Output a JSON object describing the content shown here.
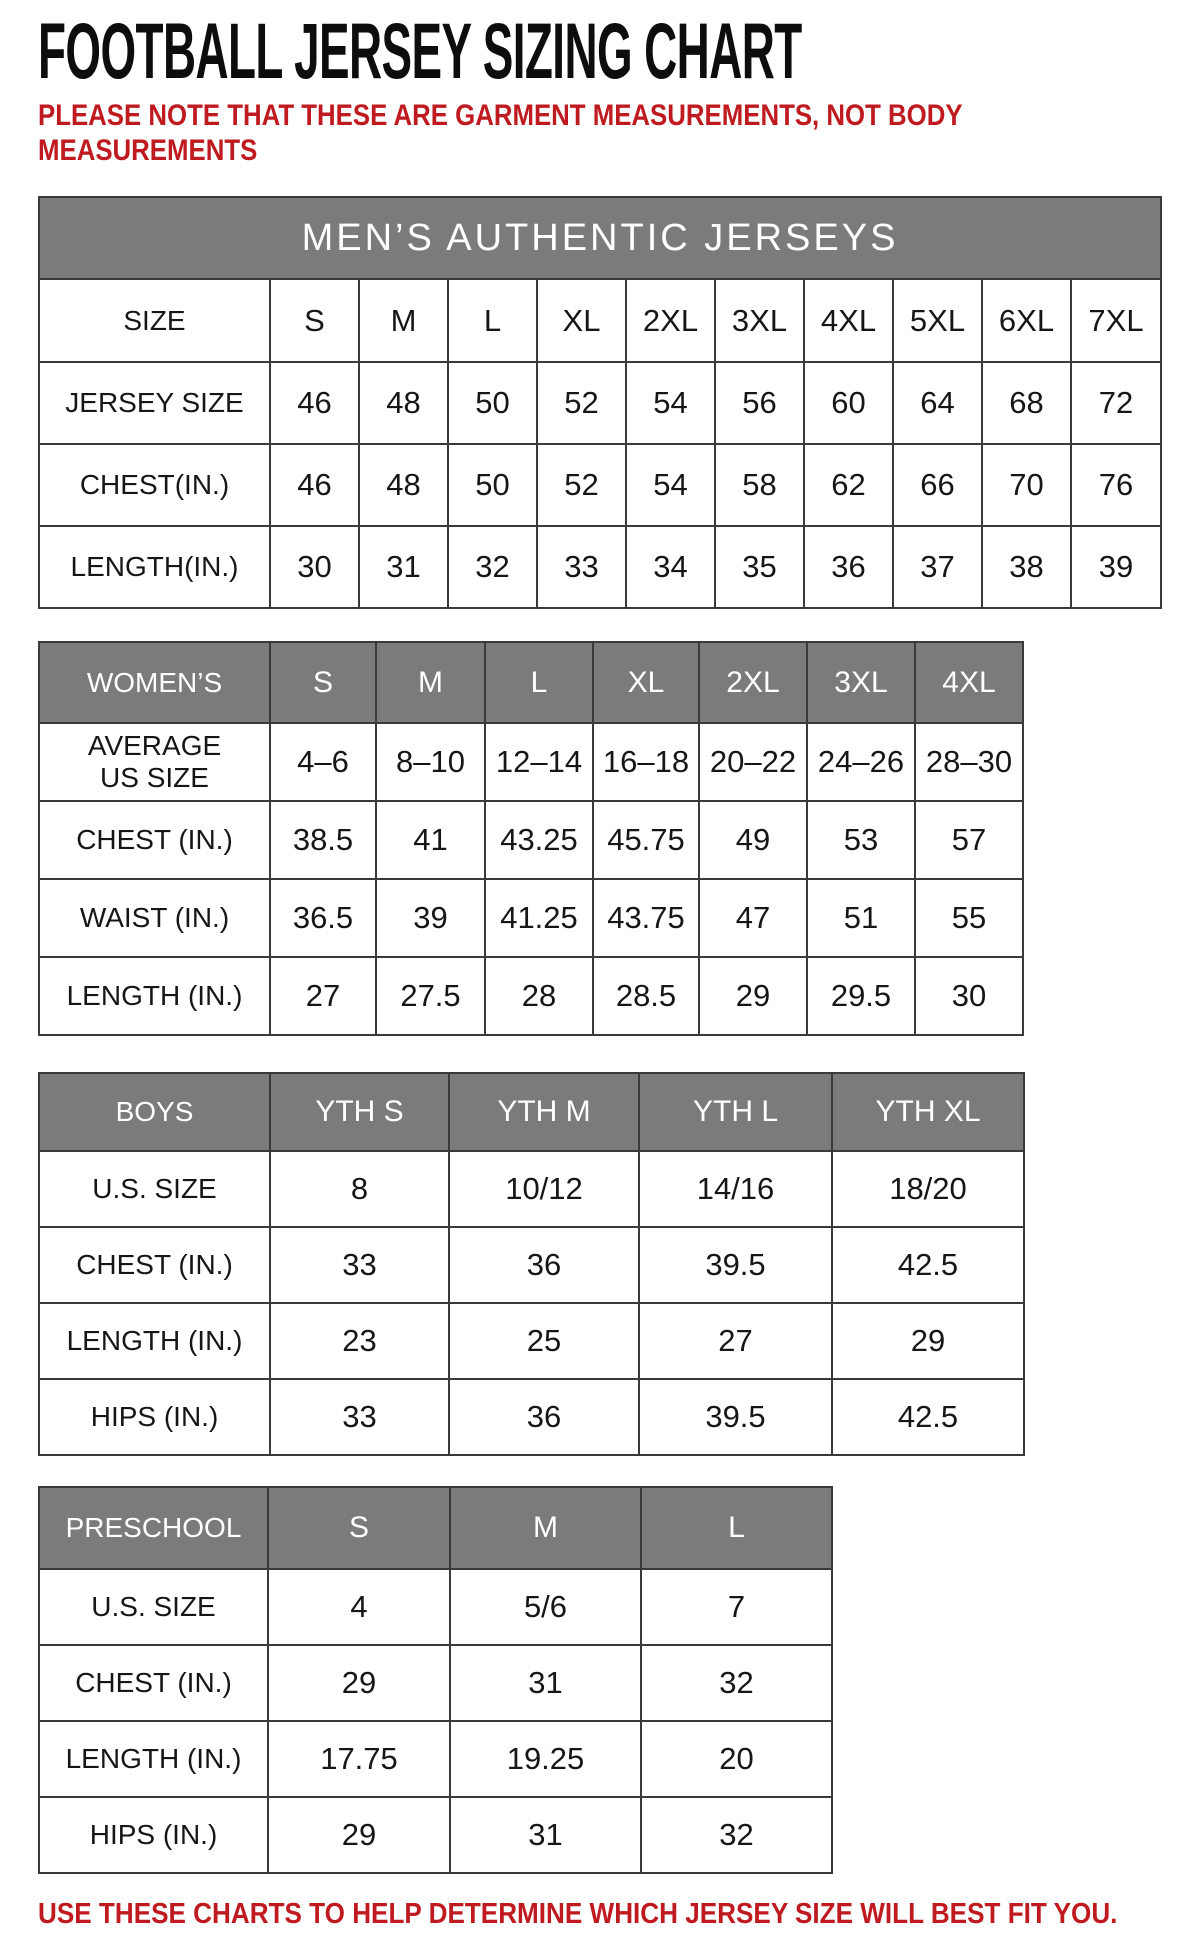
{
  "page": {
    "title": "FOOTBALL JERSEY SIZING CHART",
    "note": "PLEASE NOTE THAT THESE ARE GARMENT MEASUREMENTS, NOT BODY\nMEASUREMENTS",
    "footer": "USE THESE CHARTS TO HELP DETERMINE WHICH JERSEY SIZE WILL BEST FIT YOU.",
    "colors": {
      "accent_red": "#BF1A20",
      "header_gray": "#7B7B7B",
      "text_ink": "#161616"
    }
  },
  "tables": [
    {
      "name": "mens",
      "banner": "MEN’S AUTHENTIC JERSEYS",
      "head_label": "SIZE",
      "head_gray": false,
      "head_cols": [
        "S",
        "M",
        "L",
        "XL",
        "2XL",
        "3XL",
        "4XL",
        "5XL",
        "6XL",
        "7XL"
      ],
      "rows": [
        {
          "label": "JERSEY SIZE",
          "values": [
            "46",
            "48",
            "50",
            "52",
            "54",
            "56",
            "60",
            "64",
            "68",
            "72"
          ]
        },
        {
          "label": "CHEST(IN.)",
          "values": [
            "46",
            "48",
            "50",
            "52",
            "54",
            "58",
            "62",
            "66",
            "70",
            "76"
          ]
        },
        {
          "label": "LENGTH(IN.)",
          "values": [
            "30",
            "31",
            "32",
            "33",
            "34",
            "35",
            "36",
            "37",
            "38",
            "39"
          ]
        }
      ]
    },
    {
      "name": "womens",
      "banner": null,
      "head_label": "WOMEN’S",
      "head_gray": true,
      "head_cols": [
        "S",
        "M",
        "L",
        "XL",
        "2XL",
        "3XL",
        "4XL"
      ],
      "rows": [
        {
          "label": "AVERAGE\nUS SIZE",
          "values": [
            "4–6",
            "8–10",
            "12–14",
            "16–18",
            "20–22",
            "24–26",
            "28–30"
          ]
        },
        {
          "label": "CHEST (IN.)",
          "values": [
            "38.5",
            "41",
            "43.25",
            "45.75",
            "49",
            "53",
            "57"
          ]
        },
        {
          "label": "WAIST (IN.)",
          "values": [
            "36.5",
            "39",
            "41.25",
            "43.75",
            "47",
            "51",
            "55"
          ]
        },
        {
          "label": "LENGTH (IN.)",
          "values": [
            "27",
            "27.5",
            "28",
            "28.5",
            "29",
            "29.5",
            "30"
          ]
        }
      ]
    },
    {
      "name": "boys",
      "banner": null,
      "head_label": "BOYS",
      "head_gray": true,
      "head_cols": [
        "YTH S",
        "YTH M",
        "YTH L",
        "YTH XL"
      ],
      "rows": [
        {
          "label": "U.S. SIZE",
          "values": [
            "8",
            "10/12",
            "14/16",
            "18/20"
          ]
        },
        {
          "label": "CHEST (IN.)",
          "values": [
            "33",
            "36",
            "39.5",
            "42.5"
          ]
        },
        {
          "label": "LENGTH (IN.)",
          "values": [
            "23",
            "25",
            "27",
            "29"
          ]
        },
        {
          "label": "HIPS (IN.)",
          "values": [
            "33",
            "36",
            "39.5",
            "42.5"
          ]
        }
      ]
    },
    {
      "name": "preschool",
      "banner": null,
      "head_label": "PRESCHOOL",
      "head_gray": true,
      "head_cols": [
        "S",
        "M",
        "L"
      ],
      "rows": [
        {
          "label": "U.S. SIZE",
          "values": [
            "4",
            "5/6",
            "7"
          ]
        },
        {
          "label": "CHEST (IN.)",
          "values": [
            "29",
            "31",
            "32"
          ]
        },
        {
          "label": "LENGTH (IN.)",
          "values": [
            "17.75",
            "19.25",
            "20"
          ]
        },
        {
          "label": "HIPS (IN.)",
          "values": [
            "29",
            "31",
            "32"
          ]
        }
      ]
    }
  ]
}
